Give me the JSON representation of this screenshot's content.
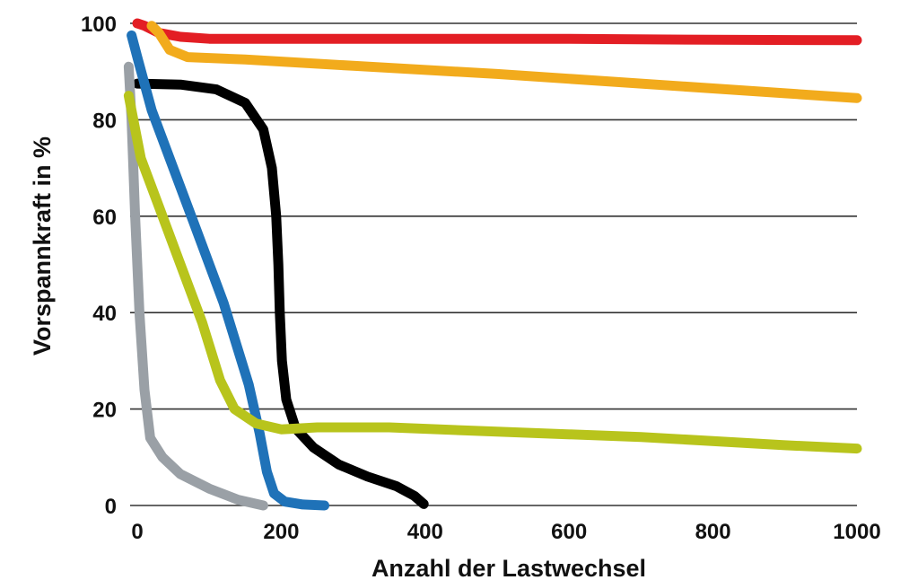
{
  "chart_data": {
    "type": "line",
    "title": "",
    "xlabel": "Anzahl der Lastwechsel",
    "ylabel": "Vorspannkraft in %",
    "xlim": [
      0,
      1000
    ],
    "ylim": [
      0,
      100
    ],
    "xticks": [
      0,
      200,
      400,
      600,
      800,
      1000
    ],
    "yticks": [
      0,
      20,
      40,
      60,
      80,
      100
    ],
    "grid": "horizontal",
    "legend": "none",
    "series": [
      {
        "color": "#e31e24",
        "points": [
          [
            0,
            100
          ],
          [
            10,
            99.5
          ],
          [
            30,
            98
          ],
          [
            60,
            97.2
          ],
          [
            100,
            96.8
          ],
          [
            200,
            96.8
          ],
          [
            400,
            96.8
          ],
          [
            600,
            96.8
          ],
          [
            800,
            96.6
          ],
          [
            1000,
            96.5
          ]
        ]
      },
      {
        "color": "#f2ab1c",
        "points": [
          [
            20,
            99.5
          ],
          [
            30,
            98
          ],
          [
            45,
            94.5
          ],
          [
            70,
            93
          ],
          [
            150,
            92.5
          ],
          [
            300,
            91.2
          ],
          [
            500,
            89.5
          ],
          [
            700,
            87.5
          ],
          [
            900,
            85.5
          ],
          [
            1000,
            84.5
          ]
        ]
      },
      {
        "color": "#000000",
        "points": [
          [
            0,
            87.5
          ],
          [
            60,
            87.3
          ],
          [
            110,
            86.3
          ],
          [
            150,
            83.5
          ],
          [
            175,
            78
          ],
          [
            187,
            70
          ],
          [
            193,
            60
          ],
          [
            196,
            50
          ],
          [
            198,
            40
          ],
          [
            201,
            30
          ],
          [
            207,
            22
          ],
          [
            220,
            16
          ],
          [
            245,
            12
          ],
          [
            280,
            8.5
          ],
          [
            320,
            6
          ],
          [
            360,
            4
          ],
          [
            385,
            2
          ],
          [
            398,
            0.3
          ]
        ]
      },
      {
        "color": "#1f72b8",
        "points": [
          [
            -8,
            97.5
          ],
          [
            0,
            93
          ],
          [
            20,
            82
          ],
          [
            45,
            72
          ],
          [
            80,
            58
          ],
          [
            120,
            42
          ],
          [
            155,
            25
          ],
          [
            170,
            15
          ],
          [
            180,
            7
          ],
          [
            190,
            2.5
          ],
          [
            205,
            0.8
          ],
          [
            230,
            0.2
          ],
          [
            260,
            0
          ]
        ]
      },
      {
        "color": "#9aa0a6",
        "points": [
          [
            -12,
            91
          ],
          [
            -8,
            80
          ],
          [
            -3,
            60
          ],
          [
            3,
            40
          ],
          [
            10,
            24
          ],
          [
            18,
            14
          ],
          [
            35,
            10
          ],
          [
            60,
            6.5
          ],
          [
            100,
            3.5
          ],
          [
            140,
            1.2
          ],
          [
            175,
            0
          ]
        ]
      },
      {
        "color": "#b8c41c",
        "points": [
          [
            -12,
            85
          ],
          [
            5,
            72
          ],
          [
            30,
            62
          ],
          [
            60,
            50
          ],
          [
            90,
            38
          ],
          [
            115,
            26
          ],
          [
            135,
            20
          ],
          [
            165,
            17
          ],
          [
            200,
            15.8
          ],
          [
            250,
            16.2
          ],
          [
            350,
            16.2
          ],
          [
            500,
            15.3
          ],
          [
            700,
            14.2
          ],
          [
            900,
            12.5
          ],
          [
            1000,
            11.8
          ]
        ]
      }
    ]
  }
}
